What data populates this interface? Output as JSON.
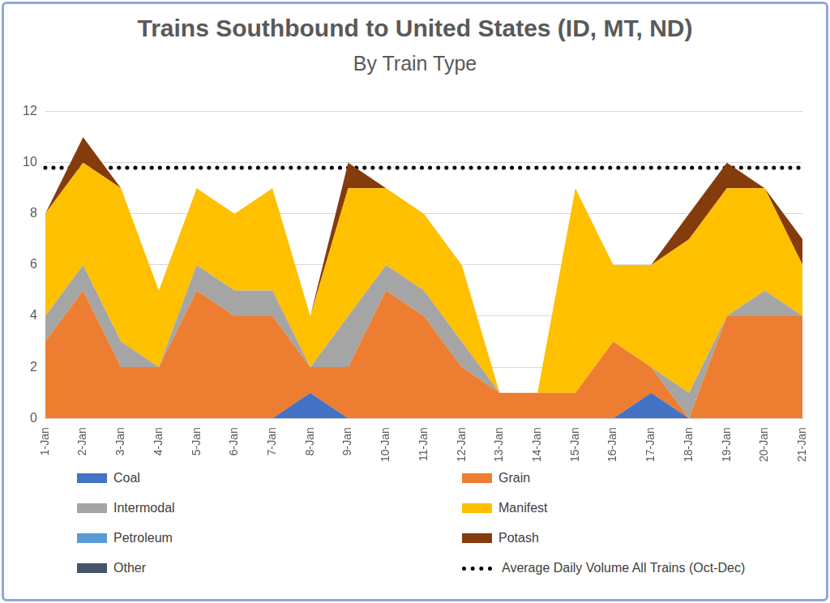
{
  "chart_data": {
    "type": "area",
    "title": "Trains Southbound to United States (ID, MT, ND)",
    "subtitle": "By Train Type",
    "categories": [
      "1-Jan",
      "2-Jan",
      "3-Jan",
      "4-Jan",
      "5-Jan",
      "6-Jan",
      "7-Jan",
      "8-Jan",
      "9-Jan",
      "10-Jan",
      "11-Jan",
      "12-Jan",
      "13-Jan",
      "14-Jan",
      "15-Jan",
      "16-Jan",
      "17-Jan",
      "18-Jan",
      "19-Jan",
      "20-Jan",
      "21-Jan"
    ],
    "series": [
      {
        "name": "Coal",
        "color": "#4472c4",
        "values": [
          0,
          0,
          0,
          0,
          0,
          0,
          0,
          1,
          0,
          0,
          0,
          0,
          0,
          0,
          0,
          0,
          1,
          0,
          0,
          0,
          0
        ]
      },
      {
        "name": "Grain",
        "color": "#ed7d31",
        "values": [
          3,
          5,
          2,
          2,
          5,
          4,
          4,
          1,
          2,
          5,
          4,
          2,
          1,
          1,
          1,
          3,
          1,
          0,
          4,
          4,
          4
        ]
      },
      {
        "name": "Intermodal",
        "color": "#a5a5a5",
        "values": [
          1,
          1,
          1,
          0,
          1,
          1,
          1,
          0,
          2,
          1,
          1,
          1,
          0,
          0,
          0,
          0,
          0,
          1,
          0,
          1,
          0
        ]
      },
      {
        "name": "Manifest",
        "color": "#ffc000",
        "values": [
          4,
          4,
          6,
          3,
          3,
          3,
          4,
          2,
          5,
          3,
          3,
          3,
          0,
          0,
          8,
          3,
          4,
          6,
          5,
          4,
          2
        ]
      },
      {
        "name": "Petroleum",
        "color": "#5b9bd5",
        "values": [
          0,
          0,
          0,
          0,
          0,
          0,
          0,
          0,
          0,
          0,
          0,
          0,
          0,
          0,
          0,
          0,
          0,
          0,
          0,
          0,
          0
        ]
      },
      {
        "name": "Potash",
        "color": "#843c0c",
        "values": [
          0,
          1,
          0,
          0,
          0,
          0,
          0,
          0,
          1,
          0,
          0,
          0,
          0,
          0,
          0,
          0,
          0,
          1,
          1,
          0,
          1
        ]
      },
      {
        "name": "Other",
        "color": "#44546a",
        "values": [
          0,
          0,
          0,
          0,
          0,
          0,
          0,
          0,
          0,
          0,
          0,
          0,
          0,
          0,
          0,
          0,
          0,
          0,
          0,
          0,
          0
        ]
      },
      {
        "name": "Average Daily Volume All Trains (Oct-Dec)",
        "color": "#000000",
        "type": "line",
        "line_style": "dotted",
        "values": [
          9.8,
          9.8,
          9.8,
          9.8,
          9.8,
          9.8,
          9.8,
          9.8,
          9.8,
          9.8,
          9.8,
          9.8,
          9.8,
          9.8,
          9.8,
          9.8,
          9.8,
          9.8,
          9.8,
          9.8,
          9.8
        ]
      }
    ],
    "ylim": [
      0,
      12
    ],
    "yticks": [
      0,
      2,
      4,
      6,
      8,
      10,
      12
    ],
    "grid": true,
    "stacked": true,
    "legend": "bottom"
  }
}
